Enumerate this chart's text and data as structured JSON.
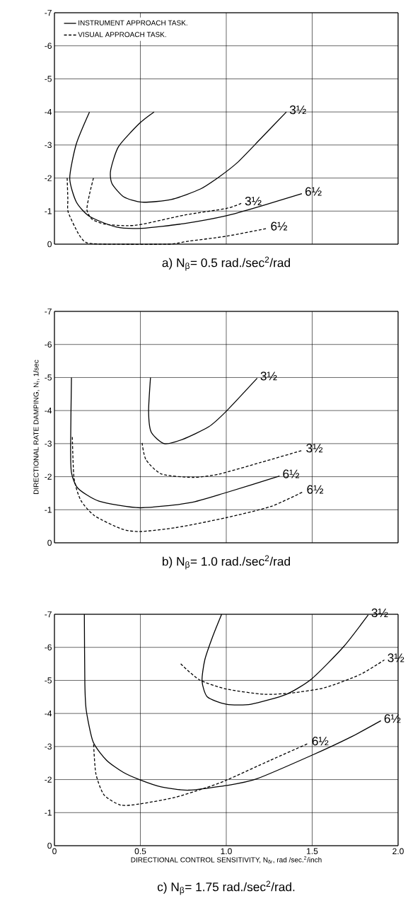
{
  "chart_data": [
    {
      "type": "line",
      "title": "a) N$_{β}$= 0.5 rad./sec$^{2}$/rad",
      "xlim": [
        0,
        2
      ],
      "ylim": [
        0,
        -7
      ],
      "xticks": [
        0,
        0.5,
        1,
        1.5,
        2
      ],
      "yticks": [
        -7,
        -6,
        -5,
        -4,
        -3,
        -2,
        -1,
        0
      ],
      "grid": true,
      "tick_labels": "y",
      "legend": "top left",
      "series": [
        {
          "name": "INSTRUMENT APPROACH TASK.",
          "color": "#000000",
          "line_style": "solid",
          "x": [
            0.204,
            0.127,
            0.089,
            0.127,
            0.204,
            0.358,
            0.51,
            0.75,
            1.0,
            1.2,
            1.44
          ],
          "values": [
            -4,
            -3.03,
            -2.0,
            -1.28,
            -0.84,
            -0.52,
            -0.48,
            -0.62,
            -0.86,
            -1.15,
            -1.53
          ]
        },
        {
          "color": "#000000",
          "line_style": "solid",
          "x": [
            0.58,
            0.496,
            0.373,
            0.327,
            0.335,
            0.404,
            0.51,
            0.68,
            0.85,
            0.957,
            1.065,
            1.2,
            1.35
          ],
          "values": [
            -4.0,
            -3.66,
            -2.95,
            -2.23,
            -1.83,
            -1.43,
            -1.27,
            -1.35,
            -1.67,
            -2.03,
            -2.47,
            -3.19,
            -4.0
          ]
        },
        {
          "name": "VISUAL APPROACH TASK.",
          "color": "#000000",
          "line_style": "dashed",
          "x": [
            0.227,
            0.204,
            0.189,
            0.22,
            0.3,
            0.42,
            0.51,
            0.757,
            1.0,
            1.09
          ],
          "values": [
            -2.0,
            -1.51,
            -1.04,
            -0.75,
            -0.6,
            -0.56,
            -0.6,
            -0.88,
            -1.08,
            -1.24
          ]
        },
        {
          "color": "#000000",
          "line_style": "dashed",
          "x": [
            0.074,
            0.078,
            0.08,
            0.138,
            0.184,
            0.29,
            0.66,
            0.78,
            1.0,
            1.24
          ],
          "values": [
            -2.0,
            -1.36,
            -0.97,
            -0.33,
            -0.05,
            0,
            0,
            -0.09,
            -0.24,
            -0.48
          ]
        }
      ],
      "annotations": [
        {
          "text": "3½",
          "x": 1.35,
          "y": -4.0
        },
        {
          "text": "6½",
          "x": 1.44,
          "y": -1.53
        },
        {
          "text": "3½",
          "x": 1.09,
          "y": -1.24
        },
        {
          "text": "6½",
          "x": 1.24,
          "y": -0.48
        }
      ]
    },
    {
      "type": "line",
      "title": "b) N$_{β}$= 1.0 rad./sec$^{2}$/rad",
      "ylabel": "DIRECTIONAL RATE DAMPING, N$_{r}$, 1/sec",
      "xlim": [
        0,
        2
      ],
      "ylim": [
        0,
        -7
      ],
      "xticks": [
        0,
        0.5,
        1,
        1.5,
        2
      ],
      "yticks": [
        -7,
        -6,
        -5,
        -4,
        -3,
        -2,
        -1,
        0
      ],
      "grid": true,
      "tick_labels": "y",
      "series": [
        {
          "color": "#000000",
          "line_style": "solid",
          "x": [
            0.559,
            0.548,
            0.563,
            0.639,
            0.746,
            0.898,
            1.0,
            1.18
          ],
          "values": [
            -5.0,
            -3.98,
            -3.35,
            -3.0,
            -3.13,
            -3.51,
            -3.98,
            -4.98
          ]
        },
        {
          "color": "#000000",
          "line_style": "dashed",
          "x": [
            0.51,
            0.533,
            0.624,
            0.807,
            0.959,
            1.2,
            1.446
          ],
          "values": [
            -3.02,
            -2.51,
            -2.08,
            -1.98,
            -2.08,
            -2.43,
            -2.8
          ]
        },
        {
          "color": "#000000",
          "line_style": "solid",
          "x": [
            0.099,
            0.094,
            0.099,
            0.137,
            0.259,
            0.498,
            0.787,
            1.0,
            1.31
          ],
          "values": [
            -5.0,
            -2.9,
            -2.12,
            -1.65,
            -1.26,
            -1.06,
            -1.21,
            -1.52,
            -2.02
          ]
        },
        {
          "color": "#000000",
          "line_style": "dashed",
          "x": [
            0.104,
            0.114,
            0.153,
            0.233,
            0.39,
            0.498,
            0.707,
            1.0,
            1.26,
            1.45
          ],
          "values": [
            -3.2,
            -1.96,
            -1.29,
            -0.82,
            -0.42,
            -0.34,
            -0.46,
            -0.76,
            -1.1,
            -1.55
          ]
        }
      ],
      "annotations": [
        {
          "text": "3½",
          "x": 1.18,
          "y": -4.98
        },
        {
          "text": "3½",
          "x": 1.446,
          "y": -2.8
        },
        {
          "text": "6½",
          "x": 1.31,
          "y": -2.02
        },
        {
          "text": "6½",
          "x": 1.45,
          "y": -1.55
        }
      ]
    },
    {
      "type": "line",
      "title": "c) N$_{β}$= 1.75 rad./sec$^{2}$/rad.",
      "xlabel": "DIRECTIONAL CONTROL SENSITIVITY, N$_{δr}$, rad /sec.$^{2}$/inch",
      "xlim": [
        0,
        2
      ],
      "ylim": [
        0,
        -7
      ],
      "xticks": [
        0,
        0.5,
        {
          "value": 1,
          "label": "1.0"
        },
        1.5,
        {
          "value": 2,
          "label": "2.0"
        }
      ],
      "yticks": [
        -7,
        -6,
        -5,
        -4,
        -3,
        -2,
        -1,
        0
      ],
      "grid": true,
      "series": [
        {
          "color": "#000000",
          "line_style": "solid",
          "x": [
            0.174,
            0.177,
            0.185,
            0.225,
            0.304,
            0.4,
            0.494,
            0.621,
            0.78,
            1.0,
            1.176,
            1.5,
            1.73,
            1.9
          ],
          "values": [
            -7,
            -4.9,
            -4.1,
            -3.14,
            -2.58,
            -2.22,
            -2.0,
            -1.78,
            -1.68,
            -1.82,
            -2.02,
            -2.74,
            -3.3,
            -3.78
          ]
        },
        {
          "color": "#000000",
          "line_style": "dashed",
          "x": [
            0.228,
            0.241,
            0.288,
            0.384,
            0.494,
            0.7,
            0.875,
            1.0,
            1.255,
            1.48
          ],
          "values": [
            -3.06,
            -2.18,
            -1.54,
            -1.23,
            -1.26,
            -1.46,
            -1.74,
            -1.98,
            -2.58,
            -3.1
          ]
        },
        {
          "color": "#000000",
          "line_style": "solid",
          "x": [
            0.973,
            0.922,
            0.875,
            0.859,
            0.89,
            1.0,
            1.144,
            1.35,
            1.5,
            1.683,
            1.826
          ],
          "values": [
            -7,
            -6.34,
            -5.62,
            -4.98,
            -4.5,
            -4.28,
            -4.28,
            -4.58,
            -5.06,
            -6.02,
            -6.98
          ]
        },
        {
          "color": "#000000",
          "line_style": "dashed",
          "x": [
            0.735,
            0.843,
            1.0,
            1.22,
            1.38,
            1.574,
            1.78,
            1.92
          ],
          "values": [
            -5.5,
            -5.02,
            -4.74,
            -4.58,
            -4.62,
            -4.78,
            -5.18,
            -5.62
          ]
        }
      ],
      "annotations": [
        {
          "text": "3½",
          "x": 1.826,
          "y": -6.98
        },
        {
          "text": "3½",
          "x": 1.92,
          "y": -5.62
        },
        {
          "text": "6½",
          "x": 1.9,
          "y": -3.78
        },
        {
          "text": "6½",
          "x": 1.48,
          "y": -3.1
        }
      ]
    }
  ]
}
